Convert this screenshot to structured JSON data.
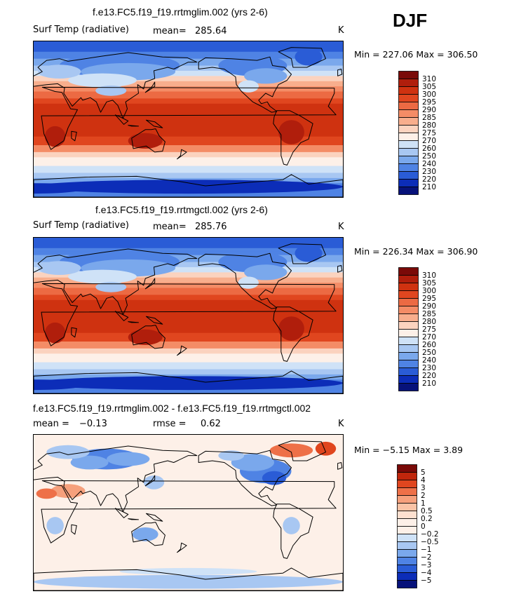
{
  "season_label": "DJF",
  "chart_data": [
    {
      "type": "heatmap",
      "title": "f.e13.FC5.f19_f19.rrtmglim.002 (yrs 2-6)",
      "variable": "Surf Temp (radiative)",
      "stat1_label": "mean=",
      "stat1_value": "285.64",
      "stat2_label": "",
      "stat2_value": "",
      "units": "K",
      "min_label": "Min =",
      "min_value": "227.06",
      "max_label": "Max =",
      "max_value": "306.50",
      "projection": "cylindrical-equidistant, 0-360 longitude",
      "colorbar_levels": [
        "310",
        "305",
        "300",
        "295",
        "290",
        "285",
        "280",
        "275",
        "270",
        "260",
        "250",
        "240",
        "230",
        "220",
        "210"
      ],
      "colorbar_colors": [
        "#7a0a08",
        "#b01e0c",
        "#cf3210",
        "#e0461f",
        "#ec6a43",
        "#f48c66",
        "#f8ae8d",
        "#fbd3bf",
        "#fdf0e8",
        "#cfe2f7",
        "#a8c7f2",
        "#7aa8ec",
        "#4f83e4",
        "#2a5cd6",
        "#0c2db8",
        "#07127a"
      ]
    },
    {
      "type": "heatmap",
      "title": "f.e13.FC5.f19_f19.rrtmgctl.002 (yrs 2-6)",
      "variable": "Surf Temp (radiative)",
      "stat1_label": "mean=",
      "stat1_value": "285.76",
      "stat2_label": "",
      "stat2_value": "",
      "units": "K",
      "min_label": "Min =",
      "min_value": "226.34",
      "max_label": "Max =",
      "max_value": "306.90",
      "projection": "cylindrical-equidistant, 0-360 longitude",
      "colorbar_levels": [
        "310",
        "305",
        "300",
        "295",
        "290",
        "285",
        "280",
        "275",
        "270",
        "260",
        "250",
        "240",
        "230",
        "220",
        "210"
      ],
      "colorbar_colors": [
        "#7a0a08",
        "#b01e0c",
        "#cf3210",
        "#e0461f",
        "#ec6a43",
        "#f48c66",
        "#f8ae8d",
        "#fbd3bf",
        "#fdf0e8",
        "#cfe2f7",
        "#a8c7f2",
        "#7aa8ec",
        "#4f83e4",
        "#2a5cd6",
        "#0c2db8",
        "#07127a"
      ]
    },
    {
      "type": "heatmap",
      "title": "f.e13.FC5.f19_f19.rrtmglim.002 - f.e13.FC5.f19_f19.rrtmgctl.002",
      "variable": "",
      "stat1_label": "mean =",
      "stat1_value": "−0.13",
      "stat2_label": "rmse =",
      "stat2_value": "0.62",
      "units": "K",
      "min_label": "Min =",
      "min_value": "−5.15",
      "max_label": "Max =",
      "max_value": "3.89",
      "projection": "cylindrical-equidistant, 0-360 longitude",
      "colorbar_levels": [
        "5",
        "4",
        "3",
        "2",
        "1",
        "0.5",
        "0.2",
        "0",
        "−0.2",
        "−0.5",
        "−1",
        "−2",
        "−3",
        "−4",
        "−5"
      ],
      "colorbar_colors": [
        "#7a0a08",
        "#c0260c",
        "#e0461f",
        "#ee7048",
        "#f6a07c",
        "#fac3a6",
        "#fde0d0",
        "#fdf0e8",
        "#fdf0e8",
        "#cfe2f7",
        "#a8c7f2",
        "#7aa8ec",
        "#4f83e4",
        "#2a5cd6",
        "#0c2db8",
        "#07127a"
      ]
    }
  ]
}
